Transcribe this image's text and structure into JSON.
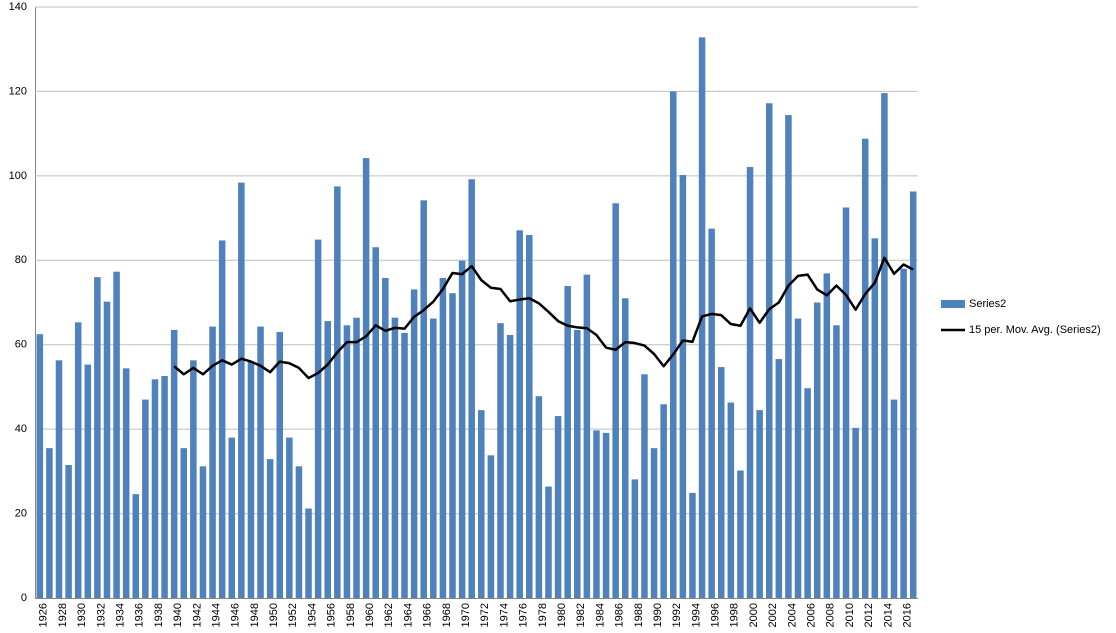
{
  "chart_data": {
    "type": "bar",
    "categories": [
      "1926",
      null,
      "1928",
      null,
      "1930",
      null,
      "1932",
      null,
      "1934",
      null,
      "1936",
      null,
      "1938",
      null,
      "1940",
      null,
      "1942",
      null,
      "1944",
      null,
      "1946",
      null,
      "1948",
      null,
      "1950",
      null,
      "1952",
      null,
      "1954",
      null,
      "1956",
      null,
      "1958",
      null,
      "1960",
      null,
      "1962",
      null,
      "1964",
      null,
      "1966",
      null,
      "1968",
      null,
      "1970",
      null,
      "1972",
      null,
      "1974",
      null,
      "1976",
      null,
      "1978",
      null,
      "1980",
      null,
      "1982",
      null,
      "1984",
      null,
      "1986",
      null,
      "1988",
      null,
      "1990",
      null,
      "1992",
      null,
      "1994",
      null,
      "1996",
      null,
      "1998",
      null,
      "2000",
      null,
      "2002",
      null,
      "2004",
      null,
      "2006",
      null,
      "2008",
      null,
      "2010",
      null,
      "2012",
      null,
      "2014",
      null,
      "2016",
      null
    ],
    "series": [
      {
        "name": "Series2",
        "type": "bar",
        "color": "#4f81bd",
        "values": [
          62.5,
          35.5,
          56.3,
          31.5,
          65.3,
          55.3,
          76,
          70.2,
          77.3,
          54.4,
          24.6,
          47,
          51.8,
          52.6,
          63.5,
          35.5,
          56.3,
          31.2,
          64.3,
          84.7,
          38,
          98.4,
          56,
          64.3,
          32.9,
          63,
          38,
          31.2,
          21.2,
          84.9,
          65.6,
          97.5,
          64.6,
          66.4,
          104.2,
          83.1,
          75.8,
          66.4,
          62.8,
          73.1,
          94.2,
          66.2,
          75.8,
          72.2,
          79.9,
          99.2,
          44.5,
          33.8,
          65.1,
          62.3,
          87.1,
          86,
          47.8,
          26.4,
          43.1,
          73.9,
          63.5,
          76.6,
          39.7,
          39.1,
          93.5,
          71,
          28.1,
          53,
          35.5,
          45.9,
          120,
          100.2,
          24.9,
          132.8,
          87.5,
          54.7,
          46.3,
          30.2,
          102.1,
          44.5,
          117.2,
          56.6,
          114.4,
          66.2,
          49.7,
          70,
          76.9,
          64.6,
          92.5,
          40.3,
          108.8,
          85.2,
          119.6,
          47,
          78,
          96.3
        ]
      },
      {
        "name": "15 per. Mov. Avg. (Series2)",
        "type": "line",
        "color": "#000000",
        "values": [
          null,
          null,
          null,
          null,
          null,
          null,
          null,
          null,
          null,
          null,
          null,
          null,
          null,
          null,
          54.9,
          53,
          54.5,
          53,
          55,
          56.3,
          55.3,
          56.7,
          56,
          55,
          53.5,
          56,
          55.6,
          54.5,
          52.1,
          53.3,
          55.3,
          58.2,
          60.6,
          60.6,
          62,
          64.6,
          63.3,
          64,
          63.8,
          66.6,
          68.2,
          70.2,
          73.2,
          77,
          76.7,
          78.6,
          75.3,
          73.5,
          73.2,
          70.3,
          70.7,
          71,
          69.8,
          67.8,
          65.6,
          64.5,
          64.1,
          63.9,
          62.3,
          59.3,
          58.8,
          60.6,
          60.4,
          59.8,
          57.8,
          54.9,
          57.7,
          61,
          60.7,
          66.7,
          67.3,
          67,
          64.9,
          64.5,
          68.6,
          65.2,
          68.4,
          70,
          74,
          76.3,
          76.6,
          73.1,
          71.7,
          74,
          71.8,
          68.3,
          72,
          74.7,
          80.6,
          76.8,
          79,
          77.8
        ]
      }
    ],
    "ylim": [
      0,
      140
    ],
    "yticks": [
      0,
      20,
      40,
      60,
      80,
      100,
      120,
      140
    ],
    "grid": true,
    "legend": "right"
  }
}
